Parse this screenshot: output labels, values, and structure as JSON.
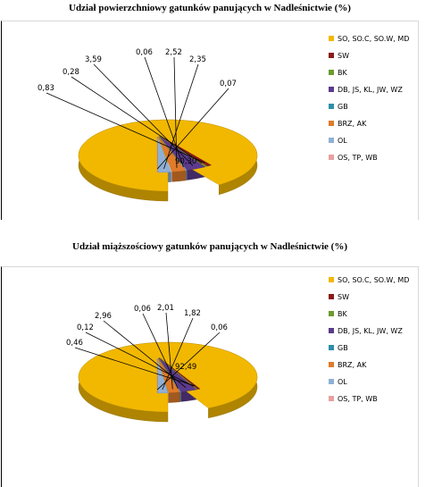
{
  "colors": {
    "so": "#f2b800",
    "sw": "#8b1a1a",
    "bk": "#6e9b2e",
    "db": "#5b3b8c",
    "gb": "#2e8fa8",
    "brz": "#e07b2a",
    "ol": "#8fb0d6",
    "os": "#e8a0a0"
  },
  "chart_data": [
    {
      "type": "pie",
      "title": "Udział powierzchniowy gatunków panujących w Nadleśnictwie (%)",
      "categories": [
        "SO, SO.C, SO.W, MD",
        "SW",
        "BK",
        "DB, JS, KL, JW, WZ",
        "GB",
        "BRZ, AK",
        "OL",
        "OS, TP, WB"
      ],
      "values": [
        90.3,
        0.83,
        0.28,
        3.59,
        0.06,
        2.52,
        2.35,
        0.07
      ],
      "labels": [
        "90,30",
        "0,83",
        "0,28",
        "3,59",
        "0,06",
        "2,52",
        "2,35",
        "0,07"
      ],
      "legend_position": "right"
    },
    {
      "type": "pie",
      "title": "Udział miąższościowy gatunków panujących w Nadleśnictwie (%)",
      "categories": [
        "SO, SO.C, SO.W, MD",
        "SW",
        "BK",
        "DB, JS, KL, JW, WZ",
        "GB",
        "BRZ, AK",
        "OL",
        "OS, TP, WB"
      ],
      "values": [
        92.49,
        0.46,
        0.12,
        2.96,
        0.06,
        2.01,
        1.82,
        0.06
      ],
      "labels": [
        "92,49",
        "0,46",
        "0,12",
        "2,96",
        "0,06",
        "2,01",
        "1,82",
        "0,06"
      ],
      "legend_position": "right"
    }
  ]
}
